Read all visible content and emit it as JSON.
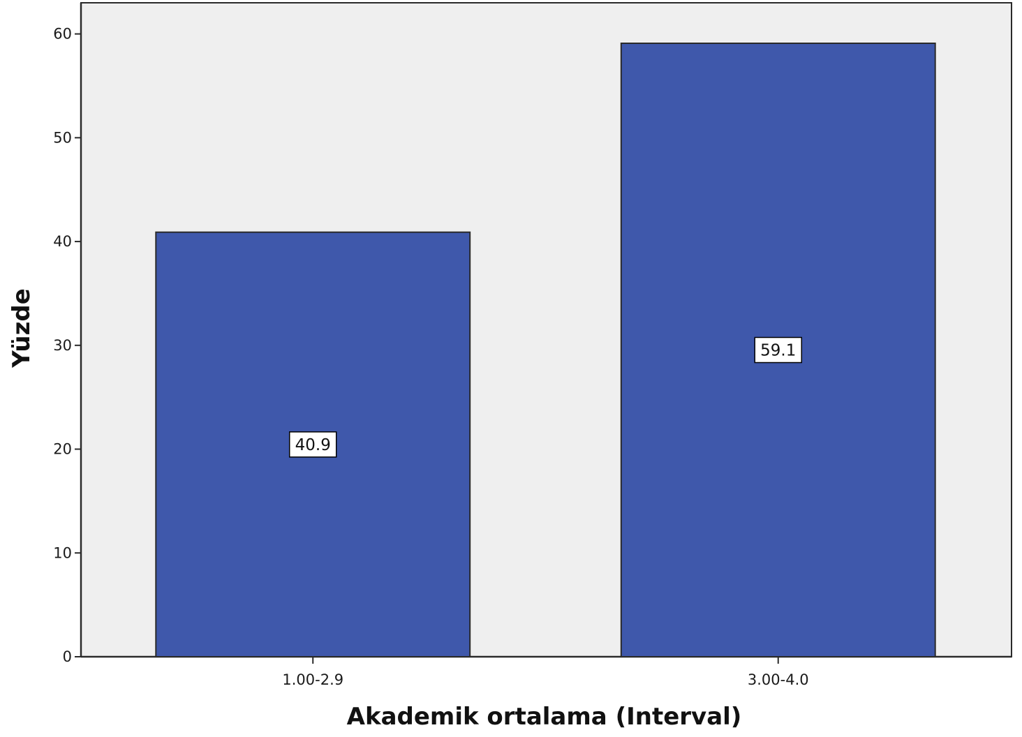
{
  "chart_data": {
    "type": "bar",
    "categories": [
      "1.00-2.9",
      "3.00-4.0"
    ],
    "values": [
      40.9,
      59.1
    ],
    "data_labels": [
      "40.9",
      "59.1"
    ],
    "title": "",
    "xlabel": "Akademik ortalama (Interval)",
    "ylabel": "Yüzde",
    "ylim": [
      0,
      63
    ],
    "yticks": [
      0,
      10,
      20,
      30,
      40,
      50,
      60
    ],
    "grid": false,
    "legend": "none",
    "colors": {
      "bar_fill": "#3f58ab",
      "bar_stroke": "#2a2a2a",
      "plot_background": "#efefef",
      "axis": "#2a2a2a",
      "label_box": "#ffffff"
    }
  }
}
